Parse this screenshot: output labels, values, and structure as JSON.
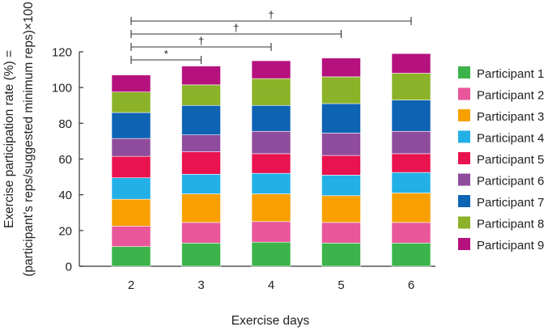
{
  "chart_data": {
    "type": "bar",
    "stacked": true,
    "categories": [
      "2",
      "3",
      "4",
      "5",
      "6"
    ],
    "xlabel": "Exercise days",
    "ylabel_line1": "Exercise participation rate (%) =",
    "ylabel_line2": "(participant’s reps/suggested minimum reps)×100",
    "ylim": [
      0,
      120
    ],
    "yticks": [
      0,
      20,
      40,
      60,
      80,
      100,
      120
    ],
    "legend_position": "right",
    "series": [
      {
        "name": "Participant 1",
        "color": "#3cb44b",
        "values": [
          11,
          13,
          13.5,
          13,
          13
        ]
      },
      {
        "name": "Participant 2",
        "color": "#e9569a",
        "values": [
          11.5,
          11.5,
          11.5,
          11.5,
          11.5
        ]
      },
      {
        "name": "Participant 3",
        "color": "#f7a000",
        "values": [
          15,
          16,
          15.5,
          15,
          16.5
        ]
      },
      {
        "name": "Participant 4",
        "color": "#23b0e6",
        "values": [
          12,
          11,
          11.5,
          11.5,
          11.5
        ]
      },
      {
        "name": "Participant 5",
        "color": "#e8134f",
        "values": [
          12,
          12.5,
          11,
          11,
          10.5
        ]
      },
      {
        "name": "Participant 6",
        "color": "#8f4c9c",
        "values": [
          10,
          9.5,
          12.5,
          12.5,
          12.5
        ]
      },
      {
        "name": "Participant 7",
        "color": "#0e63b3",
        "values": [
          14.5,
          16.5,
          14.5,
          16.5,
          17.5
        ]
      },
      {
        "name": "Participant 8",
        "color": "#8cb229",
        "values": [
          11.5,
          11.5,
          15,
          15,
          15
        ]
      },
      {
        "name": "Participant 9",
        "color": "#b5127e",
        "values": [
          9.5,
          10.5,
          10,
          10.5,
          11
        ]
      }
    ],
    "significance": [
      {
        "from": "2",
        "to": "3",
        "label": "*"
      },
      {
        "from": "2",
        "to": "4",
        "label": "†"
      },
      {
        "from": "2",
        "to": "5",
        "label": "†"
      },
      {
        "from": "2",
        "to": "6",
        "label": "†"
      }
    ]
  }
}
